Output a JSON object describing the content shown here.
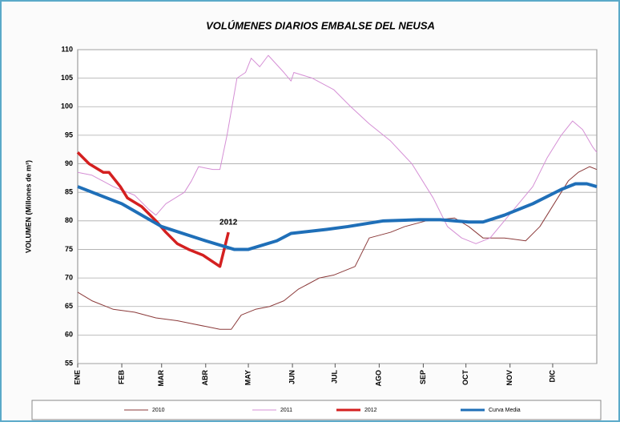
{
  "chart_data": {
    "type": "line",
    "title": "VOLÚMENES DIARIOS EMBALSE DEL NEUSA",
    "y_label": "VOLUMEN (Millones de m³)",
    "annotation": "2012",
    "xlim": [
      0,
      365
    ],
    "xticks": [
      {
        "value": 0,
        "label": "ENE"
      },
      {
        "value": 31,
        "label": "FEB"
      },
      {
        "value": 59,
        "label": "MAR"
      },
      {
        "value": 90,
        "label": "ABR"
      },
      {
        "value": 120,
        "label": "MAY"
      },
      {
        "value": 151,
        "label": "JUN"
      },
      {
        "value": 181,
        "label": "JUL"
      },
      {
        "value": 212,
        "label": "AGO"
      },
      {
        "value": 243,
        "label": "SEP"
      },
      {
        "value": 273,
        "label": "OCT"
      },
      {
        "value": 304,
        "label": "NOV"
      },
      {
        "value": 334,
        "label": "DIC"
      }
    ],
    "ylim": [
      55,
      110
    ],
    "yticks": [
      55,
      60,
      65,
      70,
      75,
      80,
      85,
      90,
      95,
      100,
      105,
      110
    ],
    "grid": true,
    "series": [
      {
        "name": "2010",
        "color": "#8b3a3a",
        "width": 1,
        "x": [
          0,
          10,
          25,
          40,
          55,
          70,
          80,
          90,
          100,
          108,
          115,
          125,
          135,
          145,
          155,
          170,
          180,
          195,
          205,
          220,
          230,
          245,
          265,
          275,
          285,
          300,
          315,
          325,
          335,
          345,
          352,
          360,
          365
        ],
        "values": [
          67.5,
          66,
          64.5,
          64,
          63,
          62.5,
          62,
          61.5,
          61,
          61,
          63.5,
          64.5,
          65,
          66,
          68,
          70,
          70.5,
          72,
          77,
          78,
          79,
          80,
          80.5,
          79,
          77,
          77,
          76.5,
          79,
          83,
          87,
          88.5,
          89.5,
          89
        ]
      },
      {
        "name": "2011",
        "color": "#d58fd5",
        "width": 1,
        "x": [
          0,
          10,
          25,
          40,
          50,
          55,
          62,
          75,
          80,
          85,
          95,
          100,
          105,
          112,
          118,
          122,
          128,
          134,
          145,
          150,
          152,
          165,
          180,
          192,
          205,
          220,
          235,
          250,
          260,
          270,
          280,
          290,
          300,
          310,
          320,
          330,
          340,
          348,
          355,
          362,
          365
        ],
        "values": [
          88.5,
          88,
          86,
          84.5,
          82,
          81,
          83,
          85,
          87,
          89.5,
          89,
          89,
          95,
          105,
          106,
          108.5,
          107,
          109,
          106,
          104.5,
          106,
          105,
          103,
          100,
          97,
          94,
          90,
          84,
          79,
          77,
          76,
          77,
          80,
          83,
          86,
          91,
          95,
          97.5,
          96,
          93,
          92
        ]
      },
      {
        "name": "2012",
        "color": "#d42020",
        "width": 3.5,
        "x": [
          0,
          8,
          18,
          22,
          30,
          35,
          45,
          55,
          62,
          70,
          78,
          88,
          100,
          106
        ],
        "values": [
          92,
          90,
          88.5,
          88.5,
          86,
          84,
          82.5,
          80,
          78,
          76,
          75,
          74,
          72,
          78
        ]
      },
      {
        "name": "Curva Media",
        "color": "#1f6fb8",
        "width": 4,
        "x": [
          0,
          31,
          59,
          90,
          110,
          120,
          140,
          150,
          175,
          190,
          215,
          240,
          255,
          275,
          285,
          300,
          320,
          340,
          350,
          358,
          365
        ],
        "values": [
          86,
          83,
          79,
          76.5,
          75,
          75,
          76.5,
          77.8,
          78.5,
          79,
          80,
          80.2,
          80.2,
          79.8,
          79.8,
          81,
          83,
          85.5,
          86.5,
          86.5,
          86
        ]
      }
    ]
  }
}
